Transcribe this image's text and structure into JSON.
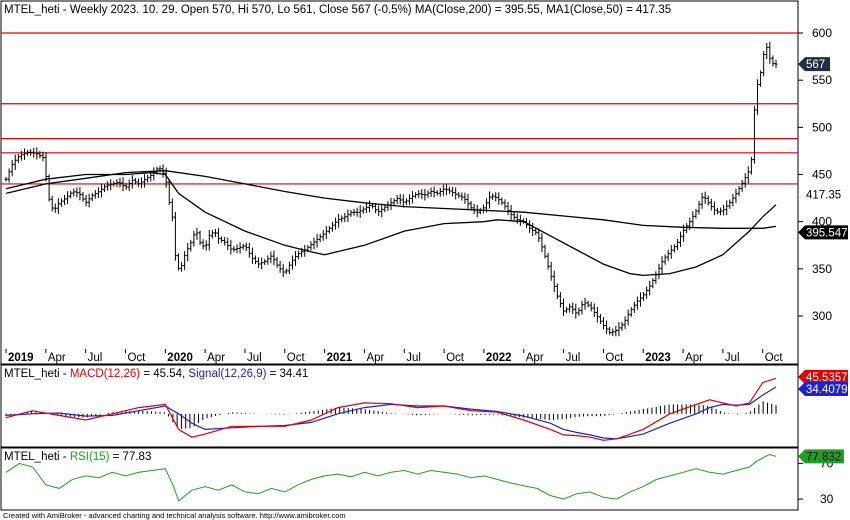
{
  "header": {
    "main": "MTEL_heti - Weekly 2023. 10. 29. Open 570, Hi 570, Lo 561, Close 567 (-0.5%) MA(Close,200) = 395.55, MA1(Close,50) = 417.35",
    "macd_name": "MTEL_heti - ",
    "macd_label": "MACD(12,26)",
    "macd_value": " = 45.54, ",
    "signal_label": "Signal(12,26,9)",
    "signal_value": " = 34.41",
    "rsi_name": "MTEL_heti - ",
    "rsi_label": "RSI(15)",
    "rsi_value": " = 77.83"
  },
  "footer": "Created with AmiBroker - advanced charting and technical analysis software. http://www.amibroker.com",
  "colors": {
    "price": "#000000",
    "hline": "#e00000",
    "macd": "#e00000",
    "signal": "#2020d0",
    "histogram": "#000000",
    "rsi": "#20a020",
    "tag_close": "#203040",
    "tag_ma200": "#000000",
    "tag_macd": "#e00000",
    "tag_signal": "#2020d0",
    "tag_rsi": "#20a020"
  },
  "price_tags": {
    "close": "567",
    "ma50": "417.35",
    "ma200": "395.547"
  },
  "macd_tags": {
    "macd": "45.5357",
    "signal": "34.4079"
  },
  "rsi_tag": "77.832",
  "chart_data": {
    "type": "candlestick",
    "title": "MTEL_heti - Weekly",
    "ylim": [
      270,
      600
    ],
    "yticks": [
      300,
      350,
      400,
      450,
      500,
      550,
      600
    ],
    "yticklabels": [
      "300",
      "350",
      "400",
      "450",
      "500",
      "550",
      "600"
    ],
    "xticks": [
      {
        "t": 0,
        "label": "2019",
        "bold": true
      },
      {
        "t": 3,
        "label": "Apr"
      },
      {
        "t": 6,
        "label": "Jul"
      },
      {
        "t": 9,
        "label": "Oct"
      },
      {
        "t": 12,
        "label": "2020",
        "bold": true
      },
      {
        "t": 15,
        "label": "Apr"
      },
      {
        "t": 18,
        "label": "Jul"
      },
      {
        "t": 21,
        "label": "Oct"
      },
      {
        "t": 24,
        "label": "2021",
        "bold": true
      },
      {
        "t": 27,
        "label": "Apr"
      },
      {
        "t": 30,
        "label": "Jul"
      },
      {
        "t": 33,
        "label": "Oct"
      },
      {
        "t": 36,
        "label": "2022",
        "bold": true
      },
      {
        "t": 39,
        "label": "Apr"
      },
      {
        "t": 42,
        "label": "Jul"
      },
      {
        "t": 45,
        "label": "Oct"
      },
      {
        "t": 48,
        "label": "2023",
        "bold": true
      },
      {
        "t": 51,
        "label": "Apr"
      },
      {
        "t": 54,
        "label": "Jul"
      },
      {
        "t": 57,
        "label": "Oct"
      }
    ],
    "horizontal_lines": [
      600,
      525,
      488,
      473,
      440
    ],
    "close_path": [
      [
        0,
        445
      ],
      [
        0.5,
        462
      ],
      [
        1,
        470
      ],
      [
        1.7,
        474
      ],
      [
        2.3,
        472
      ],
      [
        2.8,
        468
      ],
      [
        3.1,
        440
      ],
      [
        3.3,
        418
      ],
      [
        3.6,
        412
      ],
      [
        4,
        420
      ],
      [
        4.5,
        425
      ],
      [
        5,
        432
      ],
      [
        5.5,
        430
      ],
      [
        6,
        420
      ],
      [
        6.5,
        428
      ],
      [
        7,
        432
      ],
      [
        7.5,
        438
      ],
      [
        8,
        440
      ],
      [
        8.5,
        442
      ],
      [
        9,
        436
      ],
      [
        9.5,
        444
      ],
      [
        10,
        440
      ],
      [
        10.5,
        445
      ],
      [
        11,
        450
      ],
      [
        11.5,
        458
      ],
      [
        12,
        448
      ],
      [
        12.3,
        420
      ],
      [
        12.6,
        400
      ],
      [
        12.8,
        355
      ],
      [
        13.1,
        348
      ],
      [
        13.5,
        366
      ],
      [
        14,
        380
      ],
      [
        14.3,
        392
      ],
      [
        14.6,
        378
      ],
      [
        15,
        372
      ],
      [
        15.3,
        385
      ],
      [
        15.7,
        390
      ],
      [
        16,
        382
      ],
      [
        16.5,
        378
      ],
      [
        17,
        370
      ],
      [
        17.5,
        372
      ],
      [
        18,
        375
      ],
      [
        18.5,
        362
      ],
      [
        19,
        355
      ],
      [
        19.5,
        358
      ],
      [
        20,
        364
      ],
      [
        20.5,
        352
      ],
      [
        21,
        345
      ],
      [
        21.5,
        358
      ],
      [
        22,
        366
      ],
      [
        22.5,
        370
      ],
      [
        23,
        376
      ],
      [
        23.5,
        382
      ],
      [
        24,
        388
      ],
      [
        24.5,
        395
      ],
      [
        25,
        402
      ],
      [
        25.5,
        405
      ],
      [
        26,
        410
      ],
      [
        26.5,
        410
      ],
      [
        27,
        414
      ],
      [
        27.5,
        418
      ],
      [
        28,
        410
      ],
      [
        28.5,
        415
      ],
      [
        29,
        420
      ],
      [
        29.5,
        425
      ],
      [
        30,
        420
      ],
      [
        30.5,
        426
      ],
      [
        31,
        430
      ],
      [
        31.5,
        428
      ],
      [
        32,
        432
      ],
      [
        32.5,
        430
      ],
      [
        33,
        435
      ],
      [
        33.5,
        432
      ],
      [
        34,
        428
      ],
      [
        34.5,
        425
      ],
      [
        35,
        415
      ],
      [
        35.5,
        410
      ],
      [
        36,
        415
      ],
      [
        36.5,
        428
      ],
      [
        37,
        425
      ],
      [
        37.5,
        418
      ],
      [
        38,
        408
      ],
      [
        38.5,
        402
      ],
      [
        39,
        400
      ],
      [
        39.5,
        392
      ],
      [
        40,
        388
      ],
      [
        40.5,
        368
      ],
      [
        41,
        345
      ],
      [
        41.5,
        322
      ],
      [
        42,
        305
      ],
      [
        42.5,
        310
      ],
      [
        43,
        302
      ],
      [
        43.5,
        315
      ],
      [
        44,
        310
      ],
      [
        44.5,
        300
      ],
      [
        45,
        290
      ],
      [
        45.5,
        282
      ],
      [
        46,
        285
      ],
      [
        46.5,
        292
      ],
      [
        47,
        305
      ],
      [
        47.5,
        315
      ],
      [
        48,
        322
      ],
      [
        48.5,
        332
      ],
      [
        49,
        345
      ],
      [
        49.5,
        360
      ],
      [
        50,
        368
      ],
      [
        50.5,
        376
      ],
      [
        51,
        390
      ],
      [
        51.5,
        400
      ],
      [
        52,
        412
      ],
      [
        52.5,
        428
      ],
      [
        53,
        418
      ],
      [
        53.5,
        410
      ],
      [
        54,
        412
      ],
      [
        54.5,
        420
      ],
      [
        55,
        430
      ],
      [
        55.5,
        442
      ],
      [
        56,
        455
      ],
      [
        56.2,
        470
      ],
      [
        56.4,
        525
      ],
      [
        56.6,
        545
      ],
      [
        56.8,
        555
      ],
      [
        57.0,
        570
      ],
      [
        57.2,
        590
      ],
      [
        57.4,
        580
      ],
      [
        57.6,
        570
      ],
      [
        57.8,
        567
      ]
    ],
    "ma200": [
      [
        0,
        430
      ],
      [
        3,
        440
      ],
      [
        6,
        446
      ],
      [
        9,
        452
      ],
      [
        12,
        454
      ],
      [
        15,
        448
      ],
      [
        18,
        440
      ],
      [
        21,
        432
      ],
      [
        24,
        425
      ],
      [
        27,
        420
      ],
      [
        30,
        416
      ],
      [
        33,
        414
      ],
      [
        36,
        412
      ],
      [
        39,
        410
      ],
      [
        42,
        406
      ],
      [
        45,
        402
      ],
      [
        48,
        396
      ],
      [
        51,
        394
      ],
      [
        54,
        393
      ],
      [
        57,
        393
      ],
      [
        58,
        395
      ]
    ],
    "ma50": [
      [
        0,
        435
      ],
      [
        3,
        445
      ],
      [
        6,
        450
      ],
      [
        9,
        450
      ],
      [
        11,
        452
      ],
      [
        12,
        450
      ],
      [
        13,
        430
      ],
      [
        15,
        410
      ],
      [
        18,
        390
      ],
      [
        21,
        375
      ],
      [
        23,
        368
      ],
      [
        24,
        365
      ],
      [
        27,
        375
      ],
      [
        30,
        390
      ],
      [
        33,
        398
      ],
      [
        36,
        400
      ],
      [
        37,
        402
      ],
      [
        39,
        400
      ],
      [
        41,
        385
      ],
      [
        43,
        370
      ],
      [
        45,
        355
      ],
      [
        47,
        345
      ],
      [
        48,
        343
      ],
      [
        50,
        345
      ],
      [
        52,
        352
      ],
      [
        54,
        365
      ],
      [
        56,
        390
      ],
      [
        57,
        405
      ],
      [
        58,
        418
      ]
    ],
    "macd_panel": {
      "ylim": [
        -40,
        60
      ],
      "macd": [
        [
          0,
          -5
        ],
        [
          2,
          4
        ],
        [
          4,
          -2
        ],
        [
          6,
          -8
        ],
        [
          8,
          0
        ],
        [
          10,
          8
        ],
        [
          12,
          12
        ],
        [
          13,
          -20
        ],
        [
          14,
          -30
        ],
        [
          15,
          -26
        ],
        [
          17,
          -16
        ],
        [
          19,
          -16
        ],
        [
          21,
          -16
        ],
        [
          23,
          -8
        ],
        [
          25,
          8
        ],
        [
          27,
          14
        ],
        [
          29,
          13
        ],
        [
          31,
          8
        ],
        [
          33,
          10
        ],
        [
          35,
          4
        ],
        [
          37,
          2
        ],
        [
          39,
          -8
        ],
        [
          41,
          -20
        ],
        [
          42,
          -27
        ],
        [
          43,
          -28
        ],
        [
          44,
          -30
        ],
        [
          45,
          -34
        ],
        [
          46,
          -32
        ],
        [
          48,
          -20
        ],
        [
          50,
          0
        ],
        [
          52,
          12
        ],
        [
          53,
          18
        ],
        [
          54,
          14
        ],
        [
          55,
          10
        ],
        [
          56,
          14
        ],
        [
          57,
          40
        ],
        [
          58,
          45.54
        ]
      ],
      "signal": [
        [
          0,
          -2
        ],
        [
          2,
          0
        ],
        [
          4,
          1
        ],
        [
          6,
          -3
        ],
        [
          8,
          -2
        ],
        [
          10,
          4
        ],
        [
          12,
          10
        ],
        [
          13,
          0
        ],
        [
          14,
          -12
        ],
        [
          15,
          -20
        ],
        [
          17,
          -18
        ],
        [
          19,
          -16
        ],
        [
          21,
          -15
        ],
        [
          23,
          -11
        ],
        [
          25,
          0
        ],
        [
          27,
          8
        ],
        [
          29,
          12
        ],
        [
          31,
          10
        ],
        [
          33,
          10
        ],
        [
          35,
          6
        ],
        [
          37,
          3
        ],
        [
          39,
          -3
        ],
        [
          41,
          -12
        ],
        [
          42,
          -20
        ],
        [
          43,
          -24
        ],
        [
          44,
          -27
        ],
        [
          45,
          -31
        ],
        [
          46,
          -32
        ],
        [
          48,
          -26
        ],
        [
          50,
          -12
        ],
        [
          52,
          0
        ],
        [
          53,
          8
        ],
        [
          54,
          12
        ],
        [
          55,
          11
        ],
        [
          56,
          12
        ],
        [
          57,
          24
        ],
        [
          58,
          34.41
        ]
      ]
    },
    "rsi_panel": {
      "ylim": [
        20,
        85
      ],
      "yticks": [
        30,
        70
      ],
      "yticklabels": [
        "30",
        "70"
      ],
      "rsi": [
        [
          0,
          60
        ],
        [
          1,
          70
        ],
        [
          2,
          66
        ],
        [
          3,
          46
        ],
        [
          4,
          42
        ],
        [
          5,
          52
        ],
        [
          6,
          56
        ],
        [
          7,
          54
        ],
        [
          8,
          60
        ],
        [
          9,
          56
        ],
        [
          10,
          60
        ],
        [
          11,
          62
        ],
        [
          12,
          64
        ],
        [
          12.6,
          45
        ],
        [
          13,
          28
        ],
        [
          14,
          40
        ],
        [
          15,
          44
        ],
        [
          16,
          40
        ],
        [
          17,
          46
        ],
        [
          18,
          38
        ],
        [
          19,
          36
        ],
        [
          20,
          42
        ],
        [
          21,
          38
        ],
        [
          22,
          46
        ],
        [
          23,
          52
        ],
        [
          24,
          56
        ],
        [
          25,
          58
        ],
        [
          26,
          55
        ],
        [
          27,
          60
        ],
        [
          28,
          56
        ],
        [
          29,
          60
        ],
        [
          30,
          62
        ],
        [
          31,
          58
        ],
        [
          32,
          62
        ],
        [
          33,
          60
        ],
        [
          34,
          58
        ],
        [
          35,
          54
        ],
        [
          36,
          56
        ],
        [
          37,
          52
        ],
        [
          38,
          48
        ],
        [
          39,
          45
        ],
        [
          40,
          42
        ],
        [
          41,
          34
        ],
        [
          42,
          30
        ],
        [
          43,
          36
        ],
        [
          44,
          38
        ],
        [
          45,
          32
        ],
        [
          46,
          30
        ],
        [
          47,
          38
        ],
        [
          48,
          44
        ],
        [
          49,
          52
        ],
        [
          50,
          56
        ],
        [
          51,
          60
        ],
        [
          52,
          64
        ],
        [
          53,
          60
        ],
        [
          54,
          58
        ],
        [
          55,
          62
        ],
        [
          56,
          66
        ],
        [
          56.5,
          72
        ],
        [
          57,
          76
        ],
        [
          57.5,
          80
        ],
        [
          58,
          77.83
        ]
      ]
    }
  }
}
